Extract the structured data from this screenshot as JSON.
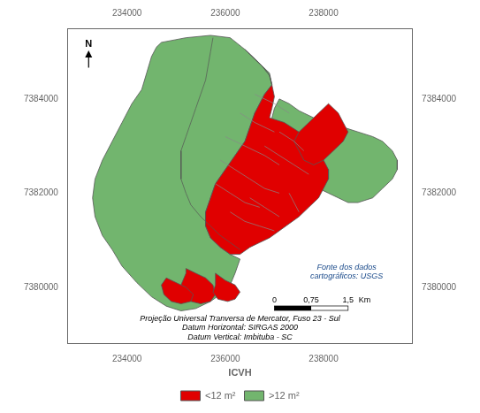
{
  "chart_data": {
    "type": "map",
    "xlim": [
      232800,
      239800
    ],
    "ylim": [
      7378800,
      7385500
    ],
    "xticks": [
      234000,
      236000,
      238000
    ],
    "yticks": [
      7380000,
      7382000,
      7384000
    ],
    "grid": false,
    "legend": "bottom",
    "legend_title": "ICVH",
    "border_color": "#555555",
    "series": [
      {
        "name": "<12 m²",
        "color": "#e00000",
        "polygons": [
          [
            [
              236400,
              7385050
            ],
            [
              236600,
              7384850
            ],
            [
              236750,
              7384700
            ],
            [
              236900,
              7384500
            ],
            [
              236950,
              7384300
            ],
            [
              237000,
              7384050
            ],
            [
              236950,
              7383800
            ],
            [
              236900,
              7383600
            ],
            [
              237200,
              7383500
            ],
            [
              237500,
              7383300
            ],
            [
              237700,
              7383100
            ],
            [
              237900,
              7382900
            ],
            [
              238000,
              7382700
            ],
            [
              238100,
              7382500
            ],
            [
              238100,
              7382300
            ],
            [
              238000,
              7382100
            ],
            [
              237900,
              7381900
            ],
            [
              237700,
              7381700
            ],
            [
              237500,
              7381500
            ],
            [
              237300,
              7381350
            ],
            [
              237100,
              7381200
            ],
            [
              236900,
              7381050
            ],
            [
              236700,
              7380950
            ],
            [
              236500,
              7380850
            ],
            [
              236300,
              7380700
            ],
            [
              236100,
              7380700
            ],
            [
              235900,
              7380850
            ],
            [
              235700,
              7381050
            ],
            [
              235600,
              7381300
            ],
            [
              235600,
              7381600
            ],
            [
              235700,
              7381900
            ],
            [
              235800,
              7382200
            ],
            [
              236000,
              7382500
            ],
            [
              236200,
              7382800
            ],
            [
              236400,
              7383100
            ],
            [
              236500,
              7383400
            ],
            [
              236600,
              7383700
            ],
            [
              236700,
              7383900
            ],
            [
              236800,
              7384100
            ],
            [
              236950,
              7384300
            ],
            [
              236900,
              7384500
            ],
            [
              236750,
              7384700
            ],
            [
              236600,
              7384850
            ],
            [
              236400,
              7385050
            ]
          ],
          [
            [
              235200,
              7380400
            ],
            [
              235400,
              7380300
            ],
            [
              235600,
              7380200
            ],
            [
              235750,
              7380050
            ],
            [
              235800,
              7379850
            ],
            [
              235700,
              7379700
            ],
            [
              235500,
              7379650
            ],
            [
              235300,
              7379700
            ],
            [
              235150,
              7379850
            ],
            [
              235100,
              7380050
            ],
            [
              235200,
              7380300
            ],
            [
              235200,
              7380400
            ]
          ],
          [
            [
              235800,
              7380300
            ],
            [
              236000,
              7380150
            ],
            [
              236200,
              7380050
            ],
            [
              236300,
              7379900
            ],
            [
              236200,
              7379750
            ],
            [
              236050,
              7379700
            ],
            [
              235850,
              7379750
            ],
            [
              235750,
              7379900
            ],
            [
              235800,
              7380050
            ],
            [
              235800,
              7380300
            ]
          ],
          [
            [
              234800,
              7380200
            ],
            [
              235000,
              7380100
            ],
            [
              235200,
              7380000
            ],
            [
              235350,
              7379850
            ],
            [
              235300,
              7379700
            ],
            [
              235100,
              7379650
            ],
            [
              234900,
              7379700
            ],
            [
              234750,
              7379850
            ],
            [
              234700,
              7380050
            ],
            [
              234800,
              7380200
            ]
          ],
          [
            [
              238100,
              7383900
            ],
            [
              238300,
              7383700
            ],
            [
              238400,
              7383500
            ],
            [
              238500,
              7383300
            ],
            [
              238400,
              7383100
            ],
            [
              238200,
              7382900
            ],
            [
              238000,
              7382700
            ],
            [
              237800,
              7382600
            ],
            [
              237600,
              7382700
            ],
            [
              237500,
              7382900
            ],
            [
              237400,
              7383100
            ],
            [
              237500,
              7383300
            ],
            [
              237700,
              7383500
            ],
            [
              237900,
              7383700
            ],
            [
              238100,
              7383900
            ]
          ]
        ]
      },
      {
        "name": ">12 m²",
        "color": "#72b56e",
        "polygons": [
          [
            [
              234700,
              7385200
            ],
            [
              235200,
              7385300
            ],
            [
              235700,
              7385350
            ],
            [
              236100,
              7385300
            ],
            [
              236400,
              7385050
            ],
            [
              236600,
              7384850
            ],
            [
              236750,
              7384700
            ],
            [
              236900,
              7384550
            ],
            [
              236950,
              7384300
            ],
            [
              236800,
              7384100
            ],
            [
              236700,
              7383900
            ],
            [
              236600,
              7383700
            ],
            [
              236500,
              7383400
            ],
            [
              236400,
              7383100
            ],
            [
              236200,
              7382800
            ],
            [
              236000,
              7382500
            ],
            [
              235800,
              7382200
            ],
            [
              235700,
              7381900
            ],
            [
              235600,
              7381600
            ],
            [
              235600,
              7381300
            ],
            [
              235700,
              7381050
            ],
            [
              235900,
              7380850
            ],
            [
              236100,
              7380700
            ],
            [
              236300,
              7380600
            ],
            [
              236200,
              7380300
            ],
            [
              236100,
              7380050
            ],
            [
              235900,
              7379850
            ],
            [
              235700,
              7379700
            ],
            [
              235400,
              7379550
            ],
            [
              235100,
              7379500
            ],
            [
              234800,
              7379600
            ],
            [
              234500,
              7379800
            ],
            [
              234200,
              7380100
            ],
            [
              233900,
              7380450
            ],
            [
              233700,
              7380800
            ],
            [
              233500,
              7381100
            ],
            [
              233350,
              7381500
            ],
            [
              233300,
              7381900
            ],
            [
              233350,
              7382300
            ],
            [
              233500,
              7382700
            ],
            [
              233700,
              7383100
            ],
            [
              233900,
              7383500
            ],
            [
              234100,
              7383900
            ],
            [
              234300,
              7384200
            ],
            [
              234400,
              7384550
            ],
            [
              234500,
              7384900
            ],
            [
              234600,
              7385100
            ],
            [
              234700,
              7385200
            ]
          ],
          [
            [
              237100,
              7384000
            ],
            [
              237300,
              7383900
            ],
            [
              237500,
              7383750
            ],
            [
              237800,
              7383600
            ],
            [
              238100,
              7383500
            ],
            [
              238400,
              7383400
            ],
            [
              238700,
              7383300
            ],
            [
              239000,
              7383200
            ],
            [
              239200,
              7383100
            ],
            [
              239400,
              7382900
            ],
            [
              239500,
              7382700
            ],
            [
              239500,
              7382500
            ],
            [
              239400,
              7382300
            ],
            [
              239200,
              7382100
            ],
            [
              239000,
              7381900
            ],
            [
              238700,
              7381800
            ],
            [
              238500,
              7381800
            ],
            [
              238300,
              7381900
            ],
            [
              238100,
              7382000
            ],
            [
              237900,
              7382100
            ],
            [
              237700,
              7382200
            ],
            [
              237500,
              7382300
            ],
            [
              237400,
              7382400
            ],
            [
              237300,
              7382600
            ],
            [
              237200,
              7382800
            ],
            [
              237100,
              7383000
            ],
            [
              237000,
              7383200
            ],
            [
              236950,
              7383600
            ],
            [
              237000,
              7383800
            ],
            [
              237100,
              7384000
            ]
          ]
        ]
      }
    ],
    "lines": [
      {
        "color": "#555555",
        "paths": [
          [
            [
              235750,
              7385300
            ],
            [
              235700,
              7385000
            ],
            [
              235650,
              7384700
            ],
            [
              235600,
              7384400
            ],
            [
              235500,
              7384100
            ],
            [
              235400,
              7383800
            ],
            [
              235300,
              7383500
            ],
            [
              235200,
              7383200
            ],
            [
              235100,
              7382900
            ],
            [
              235100,
              7382600
            ],
            [
              235100,
              7382300
            ],
            [
              235200,
              7382000
            ],
            [
              235300,
              7381750
            ],
            [
              235500,
              7381500
            ],
            [
              235700,
              7381300
            ],
            [
              235900,
              7381100
            ],
            [
              236100,
              7380950
            ],
            [
              236300,
              7380800
            ]
          ]
        ]
      },
      {
        "color": "#888888",
        "paths": [
          [
            [
              236600,
              7384100
            ],
            [
              237000,
              7383900
            ],
            [
              237300,
              7383700
            ]
          ],
          [
            [
              236300,
              7383700
            ],
            [
              236600,
              7383500
            ],
            [
              237000,
              7383300
            ]
          ],
          [
            [
              236000,
              7383200
            ],
            [
              236400,
              7383000
            ],
            [
              236800,
              7382800
            ],
            [
              237100,
              7382600
            ]
          ],
          [
            [
              235900,
              7382700
            ],
            [
              236200,
              7382500
            ],
            [
              236500,
              7382300
            ],
            [
              236800,
              7382100
            ],
            [
              237100,
              7382000
            ]
          ],
          [
            [
              235800,
              7382200
            ],
            [
              236100,
              7382000
            ],
            [
              236400,
              7381800
            ],
            [
              236700,
              7381700
            ]
          ],
          [
            [
              236100,
              7381600
            ],
            [
              236400,
              7381400
            ],
            [
              236700,
              7381300
            ],
            [
              237000,
              7381200
            ]
          ],
          [
            [
              236500,
              7381900
            ],
            [
              236800,
              7381700
            ],
            [
              237100,
              7381500
            ]
          ],
          [
            [
              237300,
              7382000
            ],
            [
              237400,
              7381800
            ],
            [
              237500,
              7381600
            ]
          ],
          [
            [
              236800,
              7383000
            ],
            [
              237100,
              7382800
            ],
            [
              237400,
              7382600
            ],
            [
              237700,
              7382400
            ]
          ],
          [
            [
              237100,
              7383300
            ],
            [
              237400,
              7383100
            ],
            [
              237600,
              7382900
            ]
          ]
        ]
      }
    ],
    "north_label": "N",
    "scale_bar": {
      "length": 750,
      "labels": [
        "0",
        "0,75",
        "1,5"
      ],
      "unit": "Km"
    },
    "annotations": [
      {
        "text": "Fonte dos dados\ncartográficos: USGS",
        "color": "#1a4a8a"
      },
      {
        "text": "Projeção Universal Tranversa de Mercator, Fuso 23 - Sul\nDatum Horizontal: SIRGAS 2000\nDatum Vertical: Imbituba - SC"
      }
    ]
  }
}
